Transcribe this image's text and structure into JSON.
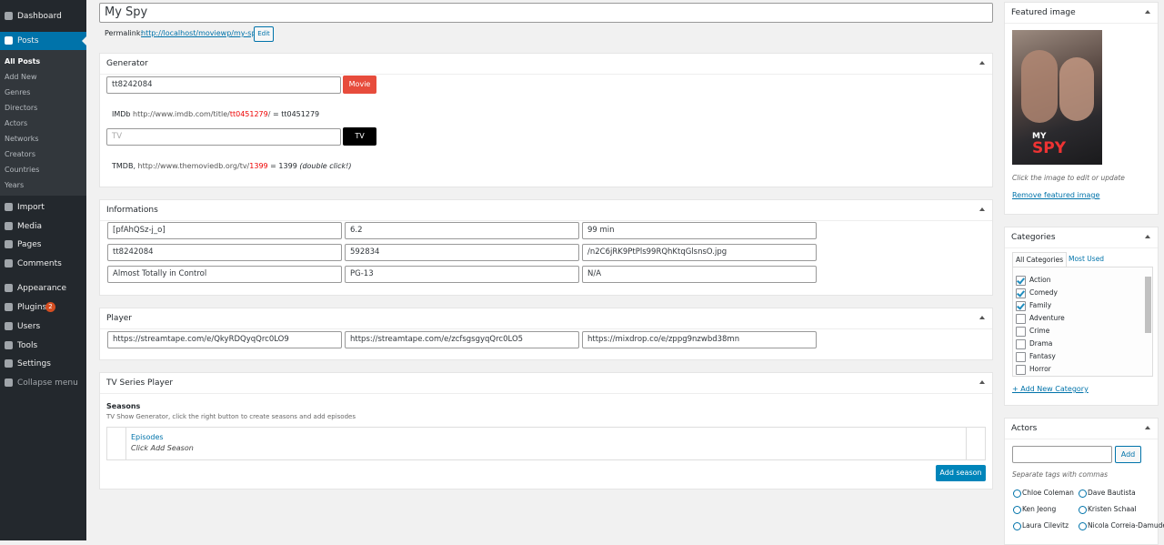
{
  "sidebar": {
    "menu_top": [
      {
        "label": "Dashboard"
      },
      {
        "label": "Posts"
      }
    ],
    "submenu": [
      "All Posts",
      "Add New",
      "Genres",
      "Directors",
      "Actors",
      "Networks",
      "Creators",
      "Countries",
      "Years"
    ],
    "menu_bottom": [
      {
        "label": "Import"
      },
      {
        "label": "Media"
      },
      {
        "label": "Pages"
      },
      {
        "label": "Comments"
      },
      {
        "label": "Appearance"
      },
      {
        "label": "Plugins",
        "badge": "2"
      },
      {
        "label": "Users"
      },
      {
        "label": "Tools"
      },
      {
        "label": "Settings"
      },
      {
        "label": "Collapse menu"
      }
    ]
  },
  "post_title": "My Spy",
  "permalink": {
    "label": "Permalink:",
    "url": "http://localhost/moviewp/my-spy/",
    "button": "Edit"
  },
  "generator": {
    "title": "Generator",
    "imdb_input": "tt8242084",
    "movie_button": "Movie",
    "imdb_hint": {
      "prefix": "IMDb",
      "url": "http://www.imdb.com/title/",
      "id": "tt0451279",
      "slash": "/",
      "result": "= tt0451279"
    },
    "tv_placeholder": "TV",
    "tv_button": "TV",
    "tmdb_hint": {
      "prefix": "TMDB,",
      "url": "http://www.themoviedb.org/tv/",
      "id": "1399",
      "result": "= 1399",
      "note": "(double click!)"
    }
  },
  "informations": {
    "title": "Informations",
    "fields": [
      [
        "[pfAhQSz-j_o]",
        "6.2",
        "99 min"
      ],
      [
        "tt8242084",
        "592834",
        "/n2C6jRK9PtPls99RQhKtqGlsnsO.jpg"
      ],
      [
        "Almost Totally in Control",
        "PG-13",
        "N/A"
      ]
    ]
  },
  "player": {
    "title": "Player",
    "fields": [
      "https://streamtape.com/e/QkyRDQyqQrc0LO9",
      "https://streamtape.com/e/zcfsgsgyqQrc0LO5",
      "https://mixdrop.co/e/zppg9nzwbd38mn"
    ]
  },
  "tv_series_player": {
    "title": "TV Series Player",
    "seasons_label": "Seasons",
    "description": "TV Show Generator, click the right button to create seasons and add episodes",
    "episodes": "Episodes",
    "hint": "Click Add Season",
    "button": "Add season"
  },
  "featured_image": {
    "title": "Featured image",
    "poster_text": [
      "MY",
      "SPY"
    ],
    "caption": "Click the image to edit or update",
    "remove_link": "Remove featured image"
  },
  "categories": {
    "title": "Categories",
    "tabs": [
      "All Categories",
      "Most Used"
    ],
    "items": [
      {
        "label": "Action",
        "checked": true
      },
      {
        "label": "Comedy",
        "checked": true
      },
      {
        "label": "Family",
        "checked": true
      },
      {
        "label": "Adventure",
        "checked": false
      },
      {
        "label": "Crime",
        "checked": false
      },
      {
        "label": "Drama",
        "checked": false
      },
      {
        "label": "Fantasy",
        "checked": false
      },
      {
        "label": "Horror",
        "checked": false
      }
    ],
    "add_link": "+ Add New Category"
  },
  "actors": {
    "title": "Actors",
    "button": "Add",
    "hint": "Separate tags with commas",
    "tags": [
      "Chloe Coleman",
      "Dave Bautista",
      "Ken Jeong",
      "Kristen Schaal",
      "Laura Cilevitz",
      "Nicola Correia-Damude"
    ]
  }
}
